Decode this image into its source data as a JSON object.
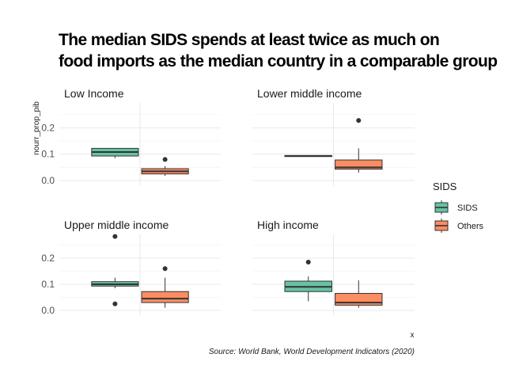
{
  "chart_data": {
    "type": "boxplot",
    "title_lines": [
      "The median SIDS spends at least twice as much on",
      "food imports as the median country in a comparable group"
    ],
    "caption": "Source: World Bank, World Development Indicators (2020)",
    "ylabel": "nourr_prop_pib",
    "xlabel": "x",
    "ylim": [
      -0.02,
      0.29
    ],
    "yticks": [
      0.0,
      0.1,
      0.2
    ],
    "ytick_labels": [
      "0.0",
      "0.1",
      "0.2"
    ],
    "grid": true,
    "legend": {
      "title": "SIDS",
      "position": "right",
      "items": [
        {
          "label": "SIDS",
          "color": "#66c2a5"
        },
        {
          "label": "Others",
          "color": "#fc8d62"
        }
      ]
    },
    "facets": [
      {
        "label": "Low Income",
        "boxes": [
          {
            "group": "SIDS",
            "min": 0.085,
            "q1": 0.093,
            "median": 0.108,
            "q3": 0.122,
            "max": 0.122,
            "outliers": []
          },
          {
            "group": "Others",
            "min": 0.018,
            "q1": 0.025,
            "median": 0.035,
            "q3": 0.045,
            "max": 0.055,
            "outliers": [
              0.08
            ]
          }
        ]
      },
      {
        "label": "Lower middle income",
        "boxes": [
          {
            "group": "SIDS",
            "min": 0.091,
            "q1": 0.091,
            "median": 0.093,
            "q3": 0.095,
            "max": 0.095,
            "outliers": []
          },
          {
            "group": "Others",
            "min": 0.03,
            "q1": 0.043,
            "median": 0.05,
            "q3": 0.078,
            "max": 0.122,
            "outliers": [
              0.228
            ]
          }
        ]
      },
      {
        "label": "Upper middle income",
        "boxes": [
          {
            "group": "SIDS",
            "min": 0.085,
            "q1": 0.093,
            "median": 0.1,
            "q3": 0.11,
            "max": 0.125,
            "outliers": [
              0.283,
              0.025
            ]
          },
          {
            "group": "Others",
            "min": 0.01,
            "q1": 0.03,
            "median": 0.045,
            "q3": 0.072,
            "max": 0.125,
            "outliers": [
              0.16
            ]
          }
        ]
      },
      {
        "label": "High income",
        "boxes": [
          {
            "group": "SIDS",
            "min": 0.035,
            "q1": 0.072,
            "median": 0.09,
            "q3": 0.112,
            "max": 0.13,
            "outliers": [
              0.185
            ]
          },
          {
            "group": "Others",
            "min": 0.01,
            "q1": 0.02,
            "median": 0.03,
            "q3": 0.065,
            "max": 0.115,
            "outliers": []
          }
        ]
      }
    ]
  }
}
